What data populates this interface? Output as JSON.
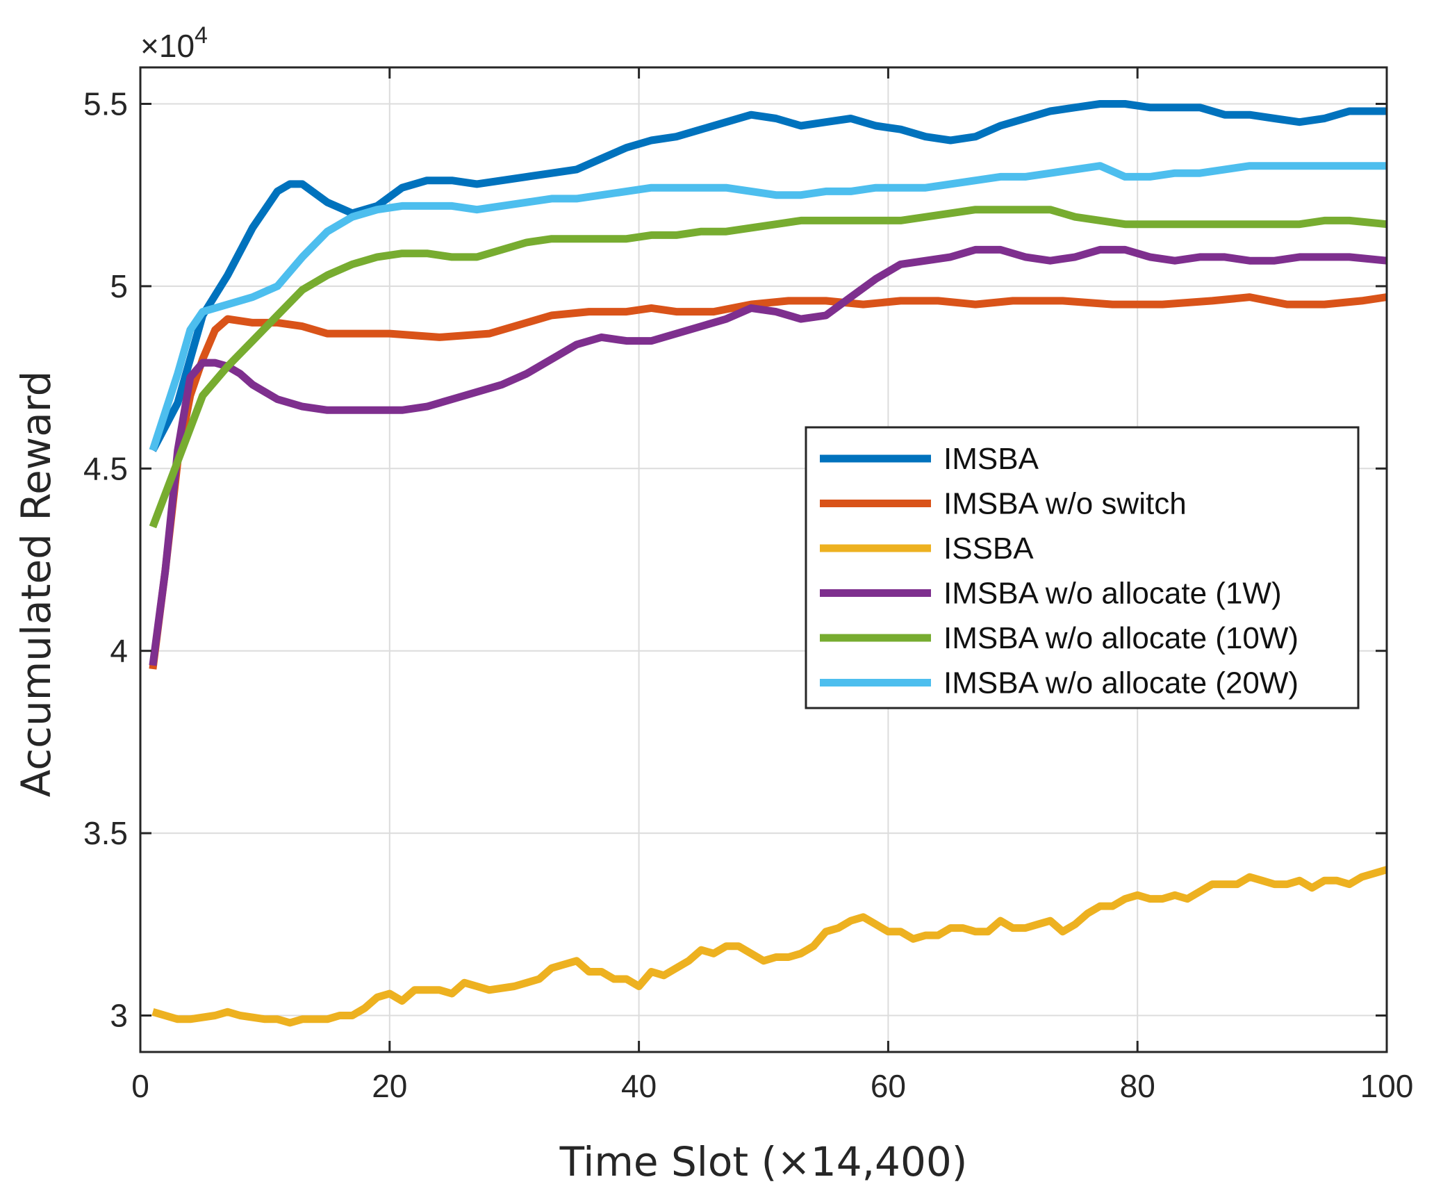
{
  "chart_data": {
    "type": "line",
    "title": "",
    "xlabel": "Time Slot (×14,400)",
    "ylabel": "Accumulated Reward",
    "exponent_label": "×10",
    "exponent_power": "4",
    "xlim": [
      0,
      100
    ],
    "ylim": [
      2.9,
      5.6
    ],
    "xticks": [
      0,
      20,
      40,
      60,
      80,
      100
    ],
    "xtick_labels": [
      "0",
      "20",
      "40",
      "60",
      "80",
      "100"
    ],
    "yticks": [
      3,
      3.5,
      4,
      4.5,
      5,
      5.5
    ],
    "ytick_labels": [
      "3",
      "3.5",
      "4",
      "4.5",
      "5",
      "5.5"
    ],
    "grid": true,
    "legend_position": "center-right",
    "series": [
      {
        "name": "IMSBA",
        "color": "#0072BD",
        "x": [
          1,
          3,
          5,
          7,
          9,
          11,
          12,
          13,
          15,
          17,
          19,
          21,
          23,
          25,
          27,
          29,
          31,
          33,
          35,
          37,
          39,
          41,
          43,
          45,
          47,
          49,
          51,
          53,
          55,
          57,
          59,
          61,
          63,
          65,
          67,
          69,
          71,
          73,
          75,
          77,
          79,
          81,
          83,
          85,
          87,
          89,
          91,
          93,
          95,
          97,
          100
        ],
        "values": [
          4.55,
          4.68,
          4.92,
          5.03,
          5.16,
          5.26,
          5.28,
          5.28,
          5.23,
          5.2,
          5.22,
          5.27,
          5.29,
          5.29,
          5.28,
          5.29,
          5.3,
          5.31,
          5.32,
          5.35,
          5.38,
          5.4,
          5.41,
          5.43,
          5.45,
          5.47,
          5.46,
          5.44,
          5.45,
          5.46,
          5.44,
          5.43,
          5.41,
          5.4,
          5.41,
          5.44,
          5.46,
          5.48,
          5.49,
          5.5,
          5.5,
          5.49,
          5.49,
          5.49,
          5.47,
          5.47,
          5.46,
          5.45,
          5.46,
          5.48,
          5.48
        ]
      },
      {
        "name": "IMSBA w/o switch",
        "color": "#D95319",
        "x": [
          1,
          2,
          3,
          4,
          5,
          6,
          7,
          9,
          11,
          13,
          15,
          17,
          20,
          24,
          28,
          30,
          33,
          36,
          39,
          41,
          43,
          46,
          49,
          52,
          55,
          58,
          61,
          64,
          67,
          70,
          74,
          78,
          82,
          86,
          89,
          92,
          95,
          98,
          100
        ],
        "values": [
          3.95,
          4.22,
          4.52,
          4.7,
          4.8,
          4.88,
          4.91,
          4.9,
          4.9,
          4.89,
          4.87,
          4.87,
          4.87,
          4.86,
          4.87,
          4.89,
          4.92,
          4.93,
          4.93,
          4.94,
          4.93,
          4.93,
          4.95,
          4.96,
          4.96,
          4.95,
          4.96,
          4.96,
          4.95,
          4.96,
          4.96,
          4.95,
          4.95,
          4.96,
          4.97,
          4.95,
          4.95,
          4.96,
          4.97
        ]
      },
      {
        "name": "ISSBA",
        "color": "#EDB120",
        "x": [
          1,
          3,
          4,
          6,
          7,
          8,
          10,
          11,
          12,
          13,
          15,
          16,
          17,
          18,
          19,
          20,
          21,
          22,
          24,
          25,
          26,
          27,
          28,
          30,
          31,
          32,
          33,
          34,
          35,
          36,
          37,
          38,
          39,
          40,
          41,
          42,
          43,
          44,
          45,
          46,
          47,
          48,
          49,
          50,
          51,
          52,
          53,
          54,
          55,
          56,
          57,
          58,
          59,
          60,
          61,
          62,
          63,
          64,
          65,
          66,
          67,
          68,
          69,
          70,
          71,
          72,
          73,
          74,
          75,
          76,
          77,
          78,
          79,
          80,
          81,
          82,
          83,
          84,
          85,
          86,
          87,
          88,
          89,
          90,
          91,
          92,
          93,
          94,
          95,
          96,
          97,
          98,
          100
        ],
        "values": [
          3.01,
          2.99,
          2.99,
          3.0,
          3.01,
          3.0,
          2.99,
          2.99,
          2.98,
          2.99,
          2.99,
          3.0,
          3.0,
          3.02,
          3.05,
          3.06,
          3.04,
          3.07,
          3.07,
          3.06,
          3.09,
          3.08,
          3.07,
          3.08,
          3.09,
          3.1,
          3.13,
          3.14,
          3.15,
          3.12,
          3.12,
          3.1,
          3.1,
          3.08,
          3.12,
          3.11,
          3.13,
          3.15,
          3.18,
          3.17,
          3.19,
          3.19,
          3.17,
          3.15,
          3.16,
          3.16,
          3.17,
          3.19,
          3.23,
          3.24,
          3.26,
          3.27,
          3.25,
          3.23,
          3.23,
          3.21,
          3.22,
          3.22,
          3.24,
          3.24,
          3.23,
          3.23,
          3.26,
          3.24,
          3.24,
          3.25,
          3.26,
          3.23,
          3.25,
          3.28,
          3.3,
          3.3,
          3.32,
          3.33,
          3.32,
          3.32,
          3.33,
          3.32,
          3.34,
          3.36,
          3.36,
          3.36,
          3.38,
          3.37,
          3.36,
          3.36,
          3.37,
          3.35,
          3.37,
          3.37,
          3.36,
          3.38,
          3.4
        ]
      },
      {
        "name": "IMSBA w/o allocate (1W)",
        "color": "#7E2F8E",
        "x": [
          1,
          2,
          3,
          4,
          5,
          6,
          7,
          8,
          9,
          11,
          13,
          15,
          17,
          19,
          21,
          23,
          25,
          27,
          29,
          31,
          33,
          35,
          37,
          39,
          41,
          43,
          45,
          47,
          49,
          51,
          53,
          55,
          57,
          59,
          61,
          63,
          65,
          67,
          69,
          71,
          73,
          75,
          77,
          79,
          81,
          83,
          85,
          87,
          89,
          91,
          93,
          95,
          97,
          100
        ],
        "values": [
          3.96,
          4.22,
          4.55,
          4.75,
          4.79,
          4.79,
          4.78,
          4.76,
          4.73,
          4.69,
          4.67,
          4.66,
          4.66,
          4.66,
          4.66,
          4.67,
          4.69,
          4.71,
          4.73,
          4.76,
          4.8,
          4.84,
          4.86,
          4.85,
          4.85,
          4.87,
          4.89,
          4.91,
          4.94,
          4.93,
          4.91,
          4.92,
          4.97,
          5.02,
          5.06,
          5.07,
          5.08,
          5.1,
          5.1,
          5.08,
          5.07,
          5.08,
          5.1,
          5.1,
          5.08,
          5.07,
          5.08,
          5.08,
          5.07,
          5.07,
          5.08,
          5.08,
          5.08,
          5.07
        ]
      },
      {
        "name": "IMSBA w/o allocate (10W)",
        "color": "#77AC30",
        "x": [
          1,
          3,
          5,
          7,
          9,
          11,
          13,
          15,
          17,
          19,
          21,
          23,
          25,
          27,
          29,
          31,
          33,
          35,
          37,
          39,
          41,
          43,
          45,
          47,
          49,
          51,
          53,
          55,
          57,
          59,
          61,
          63,
          65,
          67,
          69,
          71,
          73,
          75,
          77,
          79,
          81,
          83,
          85,
          87,
          89,
          91,
          93,
          95,
          97,
          100
        ],
        "values": [
          4.34,
          4.52,
          4.7,
          4.78,
          4.85,
          4.92,
          4.99,
          5.03,
          5.06,
          5.08,
          5.09,
          5.09,
          5.08,
          5.08,
          5.1,
          5.12,
          5.13,
          5.13,
          5.13,
          5.13,
          5.14,
          5.14,
          5.15,
          5.15,
          5.16,
          5.17,
          5.18,
          5.18,
          5.18,
          5.18,
          5.18,
          5.19,
          5.2,
          5.21,
          5.21,
          5.21,
          5.21,
          5.19,
          5.18,
          5.17,
          5.17,
          5.17,
          5.17,
          5.17,
          5.17,
          5.17,
          5.17,
          5.18,
          5.18,
          5.17
        ]
      },
      {
        "name": "IMSBA w/o allocate (20W)",
        "color": "#4DBEEE",
        "x": [
          1,
          3,
          4,
          5,
          7,
          9,
          11,
          13,
          15,
          17,
          19,
          21,
          23,
          25,
          27,
          29,
          31,
          33,
          35,
          37,
          39,
          41,
          43,
          45,
          47,
          49,
          51,
          53,
          55,
          57,
          59,
          61,
          63,
          65,
          67,
          69,
          71,
          73,
          75,
          77,
          79,
          81,
          83,
          85,
          87,
          89,
          91,
          93,
          95,
          97,
          100
        ],
        "values": [
          4.55,
          4.76,
          4.88,
          4.93,
          4.95,
          4.97,
          5.0,
          5.08,
          5.15,
          5.19,
          5.21,
          5.22,
          5.22,
          5.22,
          5.21,
          5.22,
          5.23,
          5.24,
          5.24,
          5.25,
          5.26,
          5.27,
          5.27,
          5.27,
          5.27,
          5.26,
          5.25,
          5.25,
          5.26,
          5.26,
          5.27,
          5.27,
          5.27,
          5.28,
          5.29,
          5.3,
          5.3,
          5.31,
          5.32,
          5.33,
          5.3,
          5.3,
          5.31,
          5.31,
          5.32,
          5.33,
          5.33,
          5.33,
          5.33,
          5.33,
          5.33
        ]
      }
    ]
  }
}
